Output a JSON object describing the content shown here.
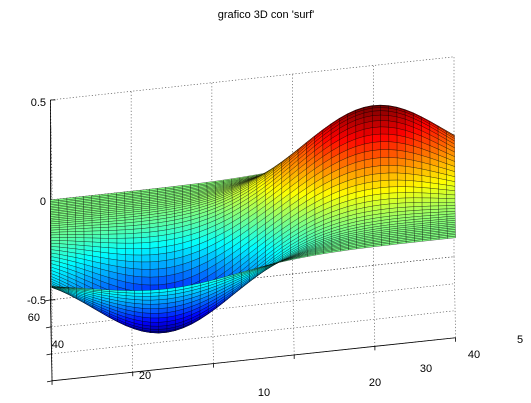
{
  "chart_data": {
    "type": "surface",
    "title": "grafico 3D con 'surf'",
    "xlabel": "",
    "ylabel": "",
    "zlabel": "",
    "xlim": [
      0,
      50
    ],
    "ylim": [
      0,
      60
    ],
    "zlim": [
      -0.5,
      0.5
    ],
    "x_ticks": [
      "10",
      "20",
      "30",
      "40",
      "5"
    ],
    "y_ticks": [
      "20",
      "40",
      "60"
    ],
    "z_ticks": [
      "0.5",
      "0",
      "-0.5"
    ],
    "grid": true,
    "colormap": "jet",
    "grid_size": [
      50,
      50
    ],
    "peak": {
      "x": 40,
      "y": 40,
      "z": 0.43
    },
    "trough": {
      "x": 14,
      "y": 17,
      "z": -0.43
    },
    "colors": {
      "axis": "#000000",
      "grid": "#444444",
      "mesh": "#000000"
    }
  }
}
